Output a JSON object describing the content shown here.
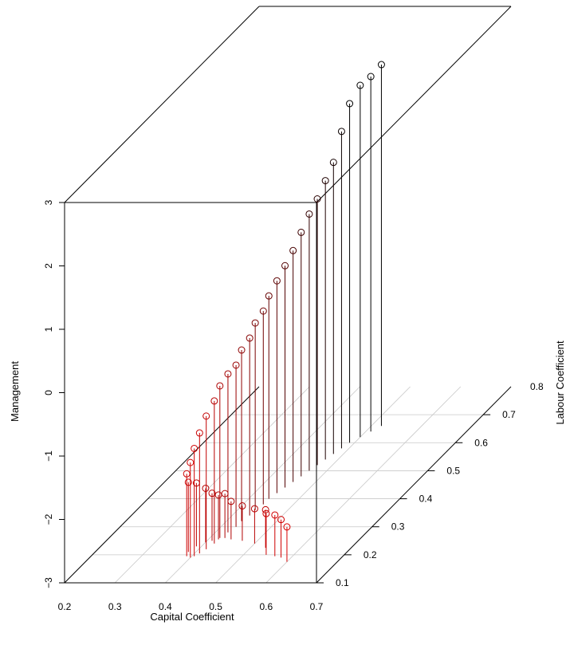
{
  "chart_data": {
    "type": "scatter",
    "subtype": "3d-scatter-with-drop-lines",
    "xlabel": "Capital Coefficient",
    "ylabel": "Labour Coefficient",
    "zlabel": "Management",
    "xlim": [
      0.2,
      0.7
    ],
    "ylim": [
      0.1,
      0.8
    ],
    "zlim": [
      -3,
      3
    ],
    "x_ticks": [
      "0.2",
      "0.3",
      "0.4",
      "0.5",
      "0.6",
      "0.7"
    ],
    "y_ticks": [
      "0.1",
      "0.2",
      "0.3",
      "0.4",
      "0.5",
      "0.6",
      "0.7",
      "0.8"
    ],
    "z_ticks": [
      "−3",
      "−2",
      "−1",
      "0",
      "1",
      "2",
      "3"
    ],
    "grid": true,
    "color_gradient": [
      "#ff0000",
      "#000000"
    ],
    "points": [
      {
        "x": 0.52,
        "y": 0.66,
        "z": 2.7
      },
      {
        "x": 0.51,
        "y": 0.64,
        "z": 2.6
      },
      {
        "x": 0.5,
        "y": 0.62,
        "z": 2.55
      },
      {
        "x": 0.49,
        "y": 0.6,
        "z": 2.35
      },
      {
        "x": 0.485,
        "y": 0.58,
        "z": 2.0
      },
      {
        "x": 0.48,
        "y": 0.56,
        "z": 1.6
      },
      {
        "x": 0.475,
        "y": 0.54,
        "z": 1.4
      },
      {
        "x": 0.47,
        "y": 0.52,
        "z": 1.2
      },
      {
        "x": 0.465,
        "y": 0.5,
        "z": 1.05
      },
      {
        "x": 0.46,
        "y": 0.48,
        "z": 0.85
      },
      {
        "x": 0.455,
        "y": 0.46,
        "z": 0.65
      },
      {
        "x": 0.45,
        "y": 0.44,
        "z": 0.5
      },
      {
        "x": 0.445,
        "y": 0.42,
        "z": 0.35
      },
      {
        "x": 0.44,
        "y": 0.4,
        "z": 0.2
      },
      {
        "x": 0.44,
        "y": 0.38,
        "z": 0.05
      },
      {
        "x": 0.435,
        "y": 0.36,
        "z": -0.05
      },
      {
        "x": 0.435,
        "y": 0.34,
        "z": -0.2
      },
      {
        "x": 0.43,
        "y": 0.32,
        "z": -0.3
      },
      {
        "x": 0.43,
        "y": 0.3,
        "z": -0.45
      },
      {
        "x": 0.425,
        "y": 0.28,
        "z": -0.5
      },
      {
        "x": 0.42,
        "y": 0.26,
        "z": -0.6
      },
      {
        "x": 0.42,
        "y": 0.24,
        "z": -0.75
      },
      {
        "x": 0.415,
        "y": 0.22,
        "z": -0.9
      },
      {
        "x": 0.41,
        "y": 0.205,
        "z": -1.1
      },
      {
        "x": 0.405,
        "y": 0.195,
        "z": -1.3
      },
      {
        "x": 0.4,
        "y": 0.19,
        "z": -1.5
      },
      {
        "x": 0.39,
        "y": 0.195,
        "z": -1.7
      },
      {
        "x": 0.385,
        "y": 0.21,
        "z": -1.9
      },
      {
        "x": 0.39,
        "y": 0.23,
        "z": -2.0
      },
      {
        "x": 0.4,
        "y": 0.245,
        "z": -2.15
      },
      {
        "x": 0.41,
        "y": 0.25,
        "z": -2.25
      },
      {
        "x": 0.42,
        "y": 0.255,
        "z": -2.3
      },
      {
        "x": 0.43,
        "y": 0.26,
        "z": -2.3
      },
      {
        "x": 0.445,
        "y": 0.255,
        "z": -2.4
      },
      {
        "x": 0.47,
        "y": 0.25,
        "z": -2.45
      },
      {
        "x": 0.5,
        "y": 0.24,
        "z": -2.45
      },
      {
        "x": 0.53,
        "y": 0.225,
        "z": -2.4
      },
      {
        "x": 0.545,
        "y": 0.2,
        "z": -2.35
      },
      {
        "x": 0.565,
        "y": 0.195,
        "z": -2.35
      },
      {
        "x": 0.58,
        "y": 0.19,
        "z": -2.4
      },
      {
        "x": 0.6,
        "y": 0.175,
        "z": -2.45
      }
    ]
  }
}
